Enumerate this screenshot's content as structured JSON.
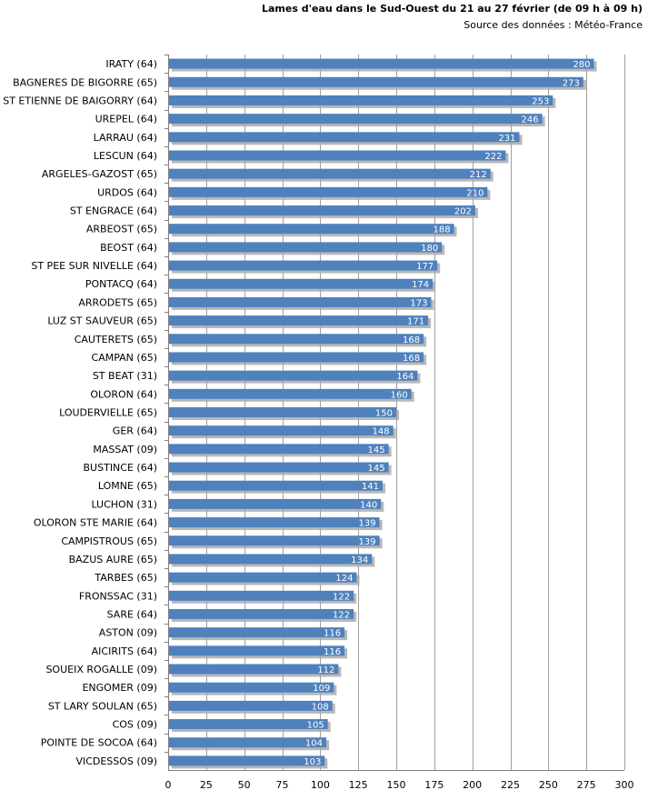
{
  "chart_data": {
    "type": "bar",
    "orientation": "horizontal",
    "title": "Lames d'eau dans le Sud-Ouest du 21 au 27 février (de 09 h à 09 h)",
    "subtitle": "Source des données : Météo-France",
    "categories": [
      "IRATY (64)",
      "BAGNERES DE BIGORRE (65)",
      "ST ETIENNE DE BAIGORRY (64)",
      "UREPEL (64)",
      "LARRAU (64)",
      "LESCUN (64)",
      "ARGELES-GAZOST (65)",
      "URDOS (64)",
      "ST ENGRACE (64)",
      "ARBEOST (65)",
      "BEOST (64)",
      "ST PEE SUR NIVELLE (64)",
      "PONTACQ (64)",
      "ARRODETS (65)",
      "LUZ ST SAUVEUR (65)",
      "CAUTERETS (65)",
      "CAMPAN (65)",
      "ST BEAT (31)",
      "OLORON (64)",
      "LOUDERVIELLE (65)",
      "GER (64)",
      "MASSAT (09)",
      "BUSTINCE (64)",
      "LOMNE (65)",
      "LUCHON (31)",
      "OLORON STE MARIE (64)",
      "CAMPISTROUS (65)",
      "BAZUS AURE (65)",
      "TARBES (65)",
      "FRONSSAC (31)",
      "SARE (64)",
      "ASTON (09)",
      "AICIRITS (64)",
      "SOUEIX ROGALLE (09)",
      "ENGOMER (09)",
      "ST LARY SOULAN (65)",
      "COS (09)",
      "POINTE DE SOCOA (64)",
      "VICDESSOS (09)"
    ],
    "values": [
      280,
      273,
      253,
      246,
      231,
      222,
      212,
      210,
      202,
      188,
      180,
      177,
      174,
      173,
      171,
      168,
      168,
      164,
      160,
      150,
      148,
      145,
      145,
      141,
      140,
      139,
      139,
      134,
      124,
      122,
      122,
      116,
      116,
      112,
      109,
      108,
      105,
      104,
      103
    ],
    "xlim": [
      0,
      300
    ],
    "xticks": [
      0,
      25,
      50,
      75,
      100,
      125,
      150,
      175,
      200,
      225,
      250,
      275,
      300
    ],
    "xlabel": "",
    "ylabel": "",
    "grid": "vertical",
    "legend": "none",
    "bar_color": "#4f81bd",
    "bar_shadow_color": "#a6a6a6",
    "grid_color": "#a0a0a0",
    "label_color": "#ffffff"
  }
}
